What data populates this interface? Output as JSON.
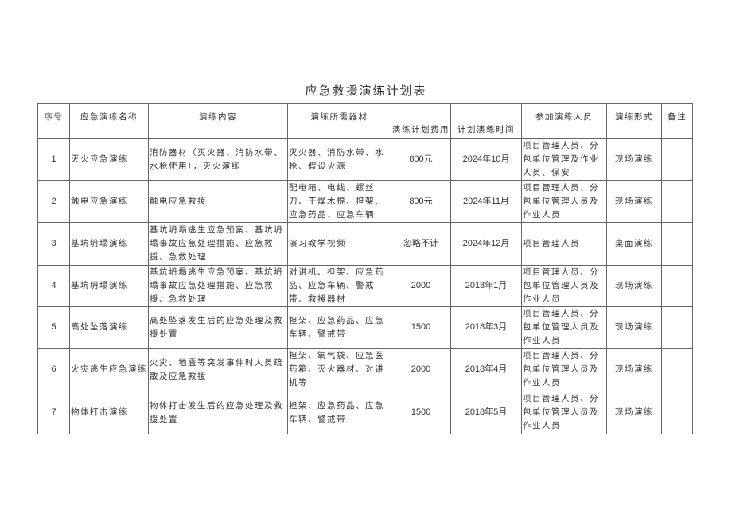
{
  "title": "应急救援演练计划表",
  "headers": [
    "序号",
    "应急演练名称",
    "演练内容",
    "演练所需器材",
    "演练计划费用",
    "计划演练时间",
    "参加演练人员",
    "演练形式",
    "备注"
  ],
  "rows": [
    {
      "no": "1",
      "name": "灭火应急演练",
      "content": "消防器材（灭火器、消防水带、水枪使用），灭火演练",
      "equipment": "灭火器、消防水带、水枪、假设火源",
      "cost": "800元",
      "time": "2024年10月",
      "staff": "项目管理人员、分包单位管理及作业人员、保安",
      "form": "现场演练",
      "note": ""
    },
    {
      "no": "2",
      "name": "触电应急演练",
      "content": "触电应急救援",
      "equipment": "配电箱、电线、螺丝刀、干燥木棍、担架、应急药品、应急车辆",
      "cost": "800元",
      "time": "2024年11月",
      "staff": "项目管理人员、分包单位管理人员及作业人员",
      "form": "现场演练",
      "note": ""
    },
    {
      "no": "3",
      "name": "基坑坍塌演练",
      "content": "基坑坍塌逃生应急预案、基坑坍塌事故应急处理措施、应急救援、急救处理",
      "equipment": "演习教学视频",
      "cost": "忽略不计",
      "time": "2024年12月",
      "staff": "项目管理人员",
      "form": "桌面演练",
      "note": ""
    },
    {
      "no": "4",
      "name": "基坑坍塌演练",
      "content": "基坑坍塌逃生应急预案、基坑坍塌事故应急处理措施、应急救援、急救处理",
      "equipment": "对讲机、担架、应急药品、应急车辆、警戒带、救援器材",
      "cost": "2000",
      "time": "2018年1月",
      "staff": "项目管理人员、分包单位管理人员及作业人员",
      "form": "现场演练",
      "note": ""
    },
    {
      "no": "5",
      "name": "高处坠落演练",
      "content": "高处坠落发生后的应急处理及救援处置",
      "equipment": "担架、应急药品、应急车辆、警戒带",
      "cost": "1500",
      "time": "2018年3月",
      "staff": "项目管理人员、分包单位管理人员及作业人员",
      "form": "现场演练",
      "note": ""
    },
    {
      "no": "6",
      "name": "火灾逃生应急演练",
      "content": "火灾、地震等突发事件时人员疏散及应急救援",
      "equipment": "担架、氧气袋、应急医药箱、灭火器材、对讲机等",
      "cost": "2000",
      "time": "2018年4月",
      "staff": "项目管理人员、分包单位管理人员及作业人员",
      "form": "现场演练",
      "note": ""
    },
    {
      "no": "7",
      "name": "物体打击演练",
      "content": "物体打击发生后的应急处理及救援处置",
      "equipment": "担架、应急药品、应急车辆、警戒带",
      "cost": "1500",
      "time": "2018年5月",
      "staff": "项目管理人员、分包单位管理人员及作业人员",
      "form": "现场演练",
      "note": ""
    }
  ]
}
